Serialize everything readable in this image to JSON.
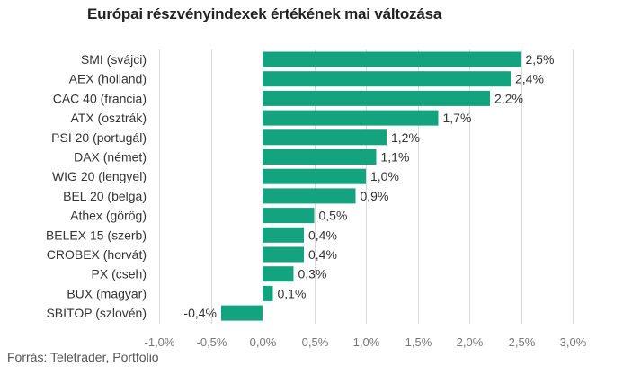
{
  "chart_data": {
    "type": "bar",
    "orientation": "horizontal",
    "title": "Európai részvényindexek értékének mai változása",
    "categories": [
      "SMI (svájci)",
      "AEX (holland)",
      "CAC 40 (francia)",
      "ATX (osztrák)",
      "PSI 20 (portugál)",
      "DAX (német)",
      "WIG 20 (lengyel)",
      "BEL 20 (belga)",
      "Athex (görög)",
      "BELEX 15 (szerb)",
      "CROBEX (horvát)",
      "PX (cseh)",
      "BUX (magyar)",
      "SBITOP (szlovén)"
    ],
    "values": [
      2.5,
      2.4,
      2.2,
      1.7,
      1.2,
      1.1,
      1.0,
      0.9,
      0.5,
      0.4,
      0.4,
      0.3,
      0.1,
      -0.4
    ],
    "value_labels": [
      "2,5%",
      "2,4%",
      "2,2%",
      "1,7%",
      "1,2%",
      "1,1%",
      "1,0%",
      "0,9%",
      "0,5%",
      "0,4%",
      "0,4%",
      "0,3%",
      "0,1%",
      "-0,4%"
    ],
    "xlim": [
      -1.0,
      3.0
    ],
    "x_ticks": [
      -1.0,
      -0.5,
      0.0,
      0.5,
      1.0,
      1.5,
      2.0,
      2.5,
      3.0
    ],
    "x_tick_labels": [
      "-1,0%",
      "-0,5%",
      "0,0%",
      "0,5%",
      "1,0%",
      "1,5%",
      "2,0%",
      "2,5%",
      "3,0%"
    ],
    "grid": true,
    "bar_color": "#13a37e",
    "grid_color": "#d9d9d9"
  },
  "source": "Forrás: Teletrader, Portfolio"
}
